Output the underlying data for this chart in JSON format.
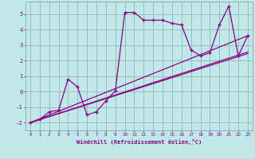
{
  "xlabel": "Windchill (Refroidissement éolien,°C)",
  "xlim": [
    -0.5,
    23.5
  ],
  "ylim": [
    -2.5,
    5.8
  ],
  "yticks": [
    -2,
    -1,
    0,
    1,
    2,
    3,
    4,
    5
  ],
  "xticks": [
    0,
    1,
    2,
    3,
    4,
    5,
    6,
    7,
    8,
    9,
    10,
    11,
    12,
    13,
    14,
    15,
    16,
    17,
    18,
    19,
    20,
    21,
    22,
    23
  ],
  "bg_color": "#c0e8e8",
  "line_color": "#880088",
  "grid_color": "#99bbbb",
  "jagged_x": [
    0,
    1,
    2,
    3,
    4,
    5,
    6,
    7,
    8,
    9,
    10,
    11,
    12,
    13,
    14,
    15,
    16,
    17,
    18,
    19,
    20,
    21,
    22,
    23
  ],
  "jagged_y": [
    -2.0,
    -1.8,
    -1.3,
    -1.2,
    0.8,
    0.3,
    -1.5,
    -1.3,
    -0.6,
    0.05,
    5.1,
    5.1,
    4.6,
    4.6,
    4.6,
    4.4,
    4.3,
    2.7,
    2.3,
    2.5,
    4.3,
    5.5,
    2.3,
    3.6
  ],
  "line1_x": [
    0,
    23
  ],
  "line1_y": [
    -2.0,
    3.6
  ],
  "line2_x": [
    0,
    23
  ],
  "line2_y": [
    -2.0,
    2.55
  ],
  "line3_x": [
    0,
    23
  ],
  "line3_y": [
    -2.0,
    2.45
  ]
}
